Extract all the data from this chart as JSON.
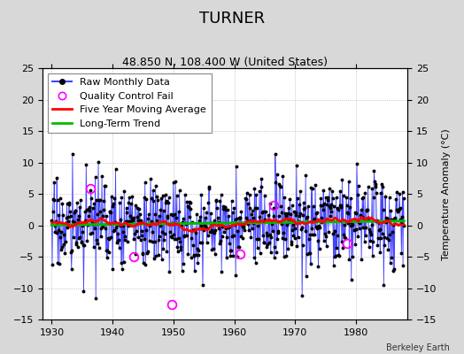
{
  "title": "TURNER",
  "subtitle": "48.850 N, 108.400 W (United States)",
  "ylabel": "Temperature Anomaly (°C)",
  "credit": "Berkeley Earth",
  "xlim": [
    1928.5,
    1988.5
  ],
  "ylim": [
    -15,
    25
  ],
  "yticks": [
    -15,
    -10,
    -5,
    0,
    5,
    10,
    15,
    20,
    25
  ],
  "xticks": [
    1930,
    1940,
    1950,
    1960,
    1970,
    1980
  ],
  "seed": 17,
  "start_year": 1930.0,
  "end_year": 1987.9,
  "n_months": 696,
  "background_color": "#d8d8d8",
  "plot_bg_color": "#ffffff",
  "raw_line_color": "#4444ff",
  "raw_marker_color": "#000000",
  "qc_fail_color": "#ff00ff",
  "moving_avg_color": "#ff0000",
  "trend_color": "#00bb00",
  "title_fontsize": 13,
  "subtitle_fontsize": 9,
  "legend_fontsize": 8,
  "axis_fontsize": 8,
  "ylabel_fontsize": 8,
  "qc_fail_positions": [
    [
      1936.3,
      5.8
    ],
    [
      1943.5,
      -5.0
    ],
    [
      1949.8,
      -12.5
    ],
    [
      1961.0,
      -4.5
    ],
    [
      1966.5,
      3.2
    ],
    [
      1978.5,
      -2.8
    ]
  ]
}
